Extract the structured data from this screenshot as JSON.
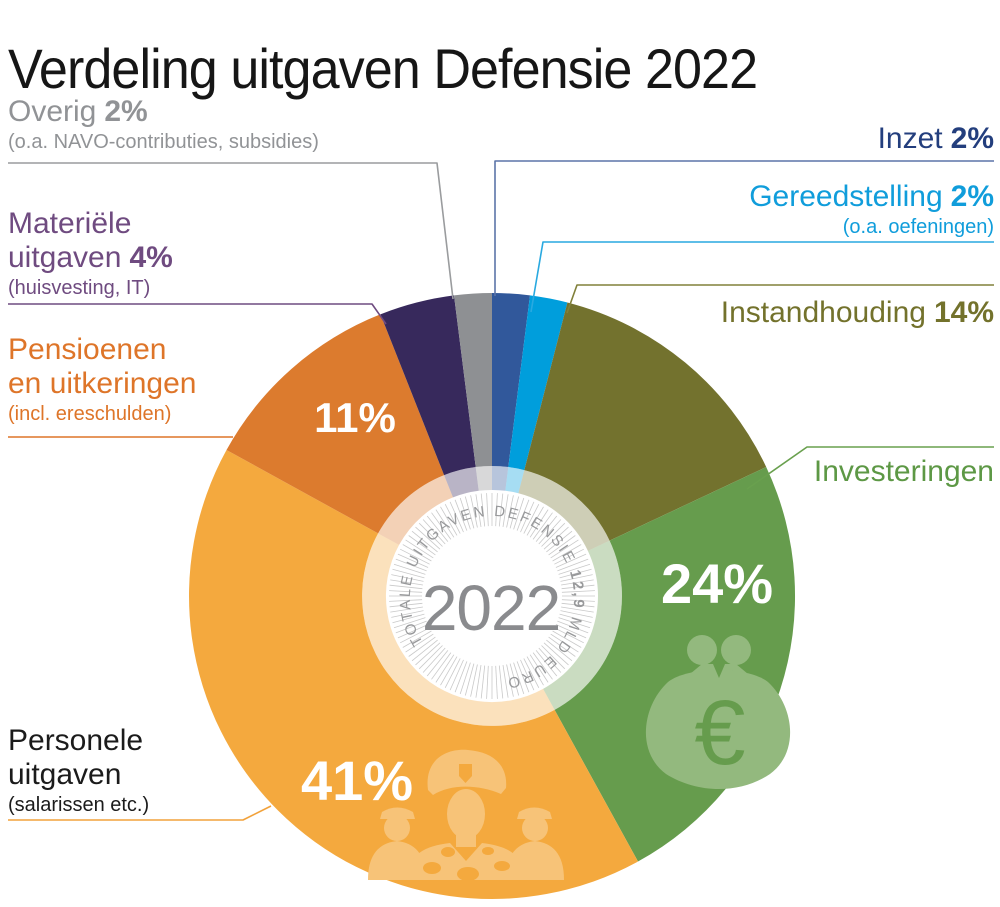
{
  "title": "Verdeling uitgaven Defensie 2022",
  "center": {
    "year": "2022",
    "ring_text": "TOTALE UITGAVEN DEFENSIE 12,9 MLD EURO",
    "ring_text_bold": "12,9",
    "year_color": "#8A8B8E",
    "ring_text_color": "#98999B"
  },
  "callouts": {
    "overig": {
      "line1": "Overig",
      "pct1": "2%",
      "sub": "(o.a. NAVO-contributies, subsidies)",
      "color": "#919396",
      "line_color": "#9A9C9E"
    },
    "materieel": {
      "line1": "Materiële",
      "line2": "uitgaven",
      "pct2": "4%",
      "sub": "(huisvesting, IT)",
      "color": "#6F4B80",
      "line_color": "#6F4B80"
    },
    "pensioenen": {
      "line1": "Pensioenen",
      "line2": "en uitkeringen",
      "sub": "(incl. ereschulden)",
      "color": "#DE7529",
      "line_color": "#DE7529"
    },
    "personele": {
      "line1": "Personele",
      "line2": "uitgaven",
      "sub": "(salarissen etc.)",
      "color": "#1B1B1B",
      "line_color": "#F2A23B"
    },
    "inzet": {
      "line1": "Inzet",
      "pct1": "2%",
      "color": "#233E7D",
      "line_color": "#5B74A8"
    },
    "gereedstelling": {
      "line1": "Gereedstelling",
      "pct1": "2%",
      "sub": "(o.a. oefeningen)",
      "color": "#109DDB",
      "line_color": "#29A9E0"
    },
    "instandhouding": {
      "line1": "Instandhouding",
      "pct1": "14%",
      "color": "#73722C",
      "line_color": "#81803A"
    },
    "investeringen": {
      "line1": "Investeringen",
      "color": "#5D9845",
      "line_color": "#69A04E"
    }
  },
  "chart_data": {
    "type": "pie",
    "title": "Verdeling uitgaven Defensie 2022",
    "year": 2022,
    "total_label": "TOTALE UITGAVEN DEFENSIE 12,9 MLD EURO",
    "total_value_mld_euro": 12.9,
    "start_angle_deg": 0,
    "direction": "clockwise",
    "donut": true,
    "segments": [
      {
        "name": "Inzet",
        "pct": 2,
        "color": "#31589B"
      },
      {
        "name": "Gereedstelling",
        "pct": 2,
        "color": "#009EDC",
        "note": "(o.a. oefeningen)"
      },
      {
        "name": "Instandhouding",
        "pct": 14,
        "color": "#73722E"
      },
      {
        "name": "Investeringen",
        "pct": 24,
        "color": "#669C4D",
        "inner_label": "24%"
      },
      {
        "name": "Personele uitgaven",
        "pct": 41,
        "color": "#F4A93E",
        "note": "(salarissen etc.)",
        "inner_label": "41%"
      },
      {
        "name": "Pensioenen en uitkeringen",
        "pct": 11,
        "color": "#DC7B2E",
        "note": "(incl. ereschulden)",
        "inner_label": "11%"
      },
      {
        "name": "Materiële uitgaven",
        "pct": 4,
        "color": "#37295C",
        "note": "(huisvesting, IT)"
      },
      {
        "name": "Overig",
        "pct": 2,
        "color": "#8E9093",
        "note": "(o.a. NAVO-contributies, subsidies)"
      }
    ],
    "inner_label_color": "#FFFFFF",
    "watermark_icons": [
      {
        "name": "euro-purse-icon",
        "segment": "Investeringen"
      },
      {
        "name": "soldiers-icon",
        "segment": "Personele uitgaven"
      }
    ]
  }
}
